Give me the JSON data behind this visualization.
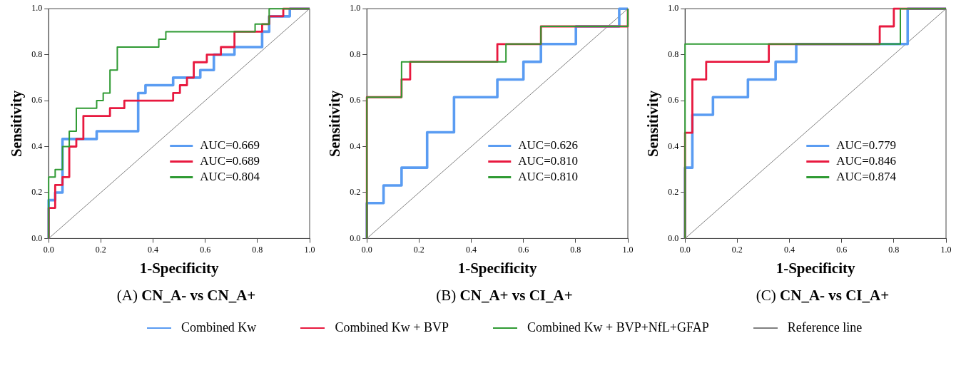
{
  "chart_data": [
    {
      "type": "line",
      "title": "(A) CN_A- vs CN_A+",
      "xlabel": "1-Specificity",
      "ylabel": "Sensitivity",
      "xlim": [
        0,
        1
      ],
      "ylim": [
        0,
        1
      ],
      "xticks": [
        {
          "value": 0,
          "label": "0.0"
        },
        {
          "value": 0.2,
          "label": "0.2"
        },
        {
          "value": 0.4,
          "label": "0.4"
        },
        {
          "value": 0.6,
          "label": "0.6"
        },
        {
          "value": 0.8,
          "label": "0.8"
        },
        {
          "value": 1,
          "label": "1.0"
        }
      ],
      "yticks": [
        {
          "value": 0,
          "label": "0.0"
        },
        {
          "value": 0.2,
          "label": "0.2"
        },
        {
          "value": 0.4,
          "label": "0.4"
        },
        {
          "value": 0.6,
          "label": "0.6"
        },
        {
          "value": 0.8,
          "label": "0.8"
        },
        {
          "value": 1,
          "label": "1.0"
        }
      ],
      "grid": false,
      "legend": "bottom right",
      "marker": "none",
      "line_style": "solid",
      "series": [
        {
          "name": "AUC=0.669",
          "color": "#5a9cf2",
          "x": [
            0,
            0,
            0.025,
            0.025,
            0.053,
            0.053,
            0.184,
            0.184,
            0.343,
            0.343,
            0.371,
            0.371,
            0.477,
            0.477,
            0.581,
            0.581,
            0.633,
            0.633,
            0.712,
            0.712,
            0.818,
            0.818,
            0.845,
            0.845,
            0.924,
            0.924,
            1
          ],
          "values": [
            0,
            0.167,
            0.167,
            0.2,
            0.2,
            0.433,
            0.433,
            0.467,
            0.467,
            0.633,
            0.633,
            0.667,
            0.667,
            0.7,
            0.7,
            0.733,
            0.733,
            0.8,
            0.8,
            0.833,
            0.833,
            0.9,
            0.9,
            0.967,
            0.967,
            1,
            1
          ]
        },
        {
          "name": "AUC=0.689",
          "color": "#e8193f",
          "x": [
            0,
            0,
            0.025,
            0.025,
            0.053,
            0.053,
            0.079,
            0.079,
            0.106,
            0.106,
            0.133,
            0.133,
            0.235,
            0.235,
            0.29,
            0.29,
            0.477,
            0.477,
            0.503,
            0.503,
            0.53,
            0.53,
            0.556,
            0.556,
            0.606,
            0.606,
            0.66,
            0.66,
            0.712,
            0.712,
            0.818,
            0.818,
            0.845,
            0.845,
            0.899,
            0.899,
            1
          ],
          "values": [
            0,
            0.133,
            0.133,
            0.233,
            0.233,
            0.267,
            0.267,
            0.4,
            0.4,
            0.433,
            0.433,
            0.533,
            0.533,
            0.567,
            0.567,
            0.6,
            0.6,
            0.633,
            0.633,
            0.667,
            0.667,
            0.7,
            0.7,
            0.767,
            0.767,
            0.8,
            0.8,
            0.833,
            0.833,
            0.9,
            0.9,
            0.933,
            0.933,
            0.967,
            0.967,
            1,
            1
          ]
        },
        {
          "name": "AUC=0.804",
          "color": "#2f9a33",
          "x": [
            0,
            0,
            0.025,
            0.025,
            0.053,
            0.053,
            0.079,
            0.079,
            0.106,
            0.106,
            0.184,
            0.184,
            0.209,
            0.209,
            0.235,
            0.235,
            0.263,
            0.263,
            0.422,
            0.422,
            0.449,
            0.449,
            0.791,
            0.791,
            0.845,
            0.845,
            1
          ],
          "values": [
            0,
            0.267,
            0.267,
            0.3,
            0.3,
            0.4,
            0.4,
            0.467,
            0.467,
            0.567,
            0.567,
            0.6,
            0.6,
            0.633,
            0.633,
            0.733,
            0.733,
            0.833,
            0.833,
            0.867,
            0.867,
            0.9,
            0.9,
            0.933,
            0.933,
            1,
            1
          ]
        },
        {
          "color": "#808080",
          "x": [
            0,
            1
          ],
          "values": [
            0,
            1
          ]
        }
      ]
    },
    {
      "type": "line",
      "title": "(B) CN_A+ vs CI_A+",
      "xlabel": "1-Specificity",
      "ylabel": "Sensitivity",
      "xlim": [
        0,
        1
      ],
      "ylim": [
        0,
        1
      ],
      "xticks": [
        {
          "value": 0,
          "label": "0.0"
        },
        {
          "value": 0.2,
          "label": "0.2"
        },
        {
          "value": 0.4,
          "label": "0.4"
        },
        {
          "value": 0.6,
          "label": "0.6"
        },
        {
          "value": 0.8,
          "label": "0.8"
        },
        {
          "value": 1,
          "label": "1.0"
        }
      ],
      "yticks": [
        {
          "value": 0,
          "label": "0.0"
        },
        {
          "value": 0.2,
          "label": "0.2"
        },
        {
          "value": 0.4,
          "label": "0.4"
        },
        {
          "value": 0.6,
          "label": "0.6"
        },
        {
          "value": 0.8,
          "label": "0.8"
        },
        {
          "value": 1,
          "label": "1.0"
        }
      ],
      "grid": false,
      "legend": "bottom right",
      "marker": "none",
      "line_style": "solid",
      "series": [
        {
          "name": "AUC=0.626",
          "color": "#5a9cf2",
          "x": [
            0,
            0,
            0.064,
            0.064,
            0.133,
            0.133,
            0.231,
            0.231,
            0.334,
            0.334,
            0.5,
            0.5,
            0.6,
            0.6,
            0.667,
            0.667,
            0.801,
            0.801,
            0.967,
            0.967,
            1
          ],
          "values": [
            0,
            0.154,
            0.154,
            0.231,
            0.231,
            0.308,
            0.308,
            0.462,
            0.462,
            0.615,
            0.615,
            0.692,
            0.692,
            0.769,
            0.769,
            0.846,
            0.846,
            0.923,
            0.923,
            1,
            1
          ]
        },
        {
          "name": "AUC=0.810",
          "color": "#e8193f",
          "x": [
            0,
            0,
            0.133,
            0.133,
            0.166,
            0.166,
            0.5,
            0.5,
            0.667,
            0.667,
            1,
            1
          ],
          "values": [
            0,
            0.615,
            0.615,
            0.692,
            0.692,
            0.769,
            0.769,
            0.846,
            0.846,
            0.923,
            0.923,
            1
          ]
        },
        {
          "name": "AUC=0.810",
          "color": "#2f9a33",
          "x": [
            0,
            0,
            0.133,
            0.133,
            0.533,
            0.533,
            0.667,
            0.667,
            1,
            1
          ],
          "values": [
            0,
            0.615,
            0.615,
            0.769,
            0.769,
            0.846,
            0.846,
            0.923,
            0.923,
            1
          ]
        },
        {
          "color": "#808080",
          "x": [
            0,
            1
          ],
          "values": [
            0,
            1
          ]
        }
      ]
    },
    {
      "type": "line",
      "title": "(C) CN_A- vs CI_A+",
      "xlabel": "1-Specificity",
      "ylabel": "Sensitivity",
      "xlim": [
        0,
        1
      ],
      "ylim": [
        0,
        1
      ],
      "xticks": [
        {
          "value": 0,
          "label": "0.0"
        },
        {
          "value": 0.2,
          "label": "0.2"
        },
        {
          "value": 0.4,
          "label": "0.4"
        },
        {
          "value": 0.6,
          "label": "0.6"
        },
        {
          "value": 0.8,
          "label": "0.8"
        },
        {
          "value": 1,
          "label": "1.0"
        }
      ],
      "yticks": [
        {
          "value": 0,
          "label": "0.0"
        },
        {
          "value": 0.2,
          "label": "0.2"
        },
        {
          "value": 0.4,
          "label": "0.4"
        },
        {
          "value": 0.6,
          "label": "0.6"
        },
        {
          "value": 0.8,
          "label": "0.8"
        },
        {
          "value": 1,
          "label": "1.0"
        }
      ],
      "grid": false,
      "legend": "bottom right",
      "marker": "none",
      "line_style": "solid",
      "series": [
        {
          "name": "AUC=0.779",
          "color": "#5a9cf2",
          "x": [
            0,
            0,
            0.028,
            0.028,
            0.107,
            0.107,
            0.241,
            0.241,
            0.347,
            0.347,
            0.426,
            0.426,
            0.853,
            0.853,
            1
          ],
          "values": [
            0,
            0.308,
            0.308,
            0.538,
            0.538,
            0.615,
            0.615,
            0.692,
            0.692,
            0.769,
            0.769,
            0.846,
            0.846,
            1,
            1
          ]
        },
        {
          "name": "AUC=0.846",
          "color": "#e8193f",
          "x": [
            0,
            0,
            0.028,
            0.028,
            0.081,
            0.081,
            0.321,
            0.321,
            0.746,
            0.746,
            0.8,
            0.8,
            1
          ],
          "values": [
            0,
            0.46,
            0.46,
            0.692,
            0.692,
            0.769,
            0.769,
            0.846,
            0.846,
            0.923,
            0.923,
            1,
            1
          ]
        },
        {
          "name": "AUC=0.874",
          "color": "#2f9a33",
          "x": [
            0,
            0,
            0.825,
            0.825,
            1
          ],
          "values": [
            0,
            0.846,
            0.846,
            1,
            1
          ]
        },
        {
          "color": "#808080",
          "x": [
            0,
            1
          ],
          "values": [
            0,
            1
          ]
        }
      ]
    },
    {
      "type": "other",
      "legend": "bottom",
      "series": [
        {
          "name": "Combined Kw",
          "color": "#5a9cf2"
        },
        {
          "name": "Combined Kw + BVP",
          "color": "#e8193f"
        },
        {
          "name": "Combined Kw + BVP+NfL+GFAP",
          "color": "#2f9a33"
        },
        {
          "name": "Reference line",
          "color": "#808080"
        }
      ]
    }
  ]
}
